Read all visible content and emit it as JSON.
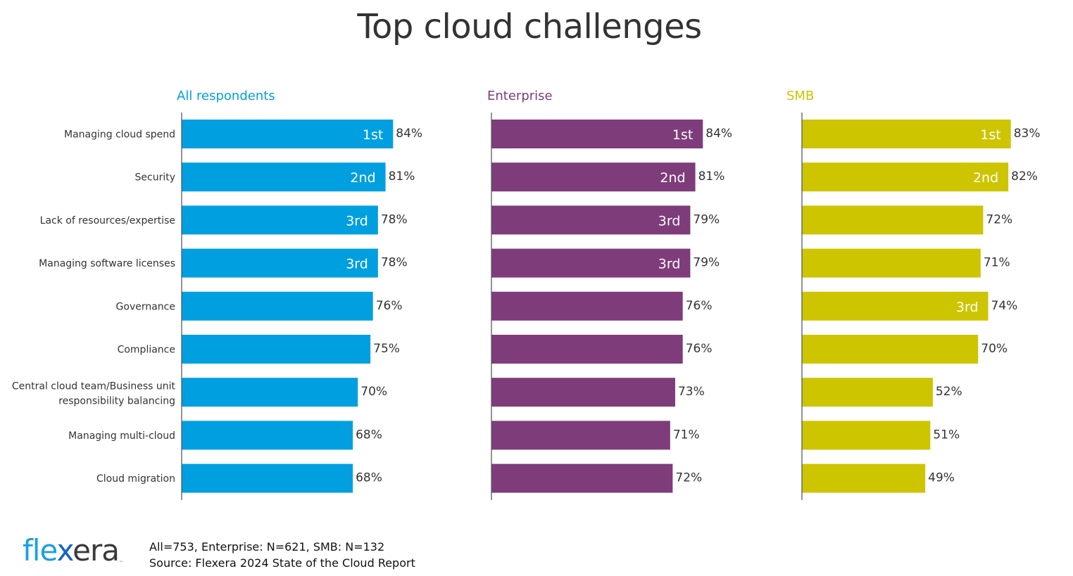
{
  "chart_data": {
    "type": "bar",
    "orientation": "horizontal",
    "title": "Top cloud challenges",
    "xlabel": "",
    "ylabel": "",
    "xlim": [
      0,
      100
    ],
    "grid": false,
    "value_format": "{v}%",
    "categories": [
      "Managing cloud spend",
      "Security",
      "Lack of resources/expertise",
      "Managing software licenses",
      "Governance",
      "Compliance",
      "Central cloud team/Business unit responsibility balancing",
      "Managing multi-cloud",
      "Cloud migration"
    ],
    "category_lines": [
      [
        "Managing cloud spend"
      ],
      [
        "Security"
      ],
      [
        "Lack of resources/expertise"
      ],
      [
        "Managing software licenses"
      ],
      [
        "Governance"
      ],
      [
        "Compliance"
      ],
      [
        "Central cloud team/Business unit",
        "responsibility balancing"
      ],
      [
        "Managing multi-cloud"
      ],
      [
        "Cloud migration"
      ]
    ],
    "series": [
      {
        "name": "All respondents",
        "color": "#009fe0",
        "values": [
          84,
          81,
          78,
          78,
          76,
          75,
          70,
          68,
          68
        ],
        "ranks": [
          "1st",
          "2nd",
          "3rd",
          "3rd",
          "",
          "",
          "",
          "",
          ""
        ]
      },
      {
        "name": "Enterprise",
        "color": "#7e3c7a",
        "values": [
          84,
          81,
          79,
          79,
          76,
          76,
          73,
          71,
          72
        ],
        "ranks": [
          "1st",
          "2nd",
          "3rd",
          "3rd",
          "",
          "",
          "",
          "",
          ""
        ]
      },
      {
        "name": "SMB",
        "color": "#cdc500",
        "values": [
          83,
          82,
          72,
          71,
          74,
          70,
          52,
          51,
          49
        ],
        "ranks": [
          "1st",
          "2nd",
          "",
          "",
          "3rd",
          "",
          "",
          "",
          ""
        ]
      }
    ]
  },
  "footer": {
    "sample_sizes": "All=753, Enterprise: N=621, SMB: N=132",
    "source": "Source: Flexera 2024 State of the Cloud Report"
  },
  "logo": {
    "part1": "fle",
    "part2": "x",
    "part3": "era",
    "tm": "™"
  }
}
